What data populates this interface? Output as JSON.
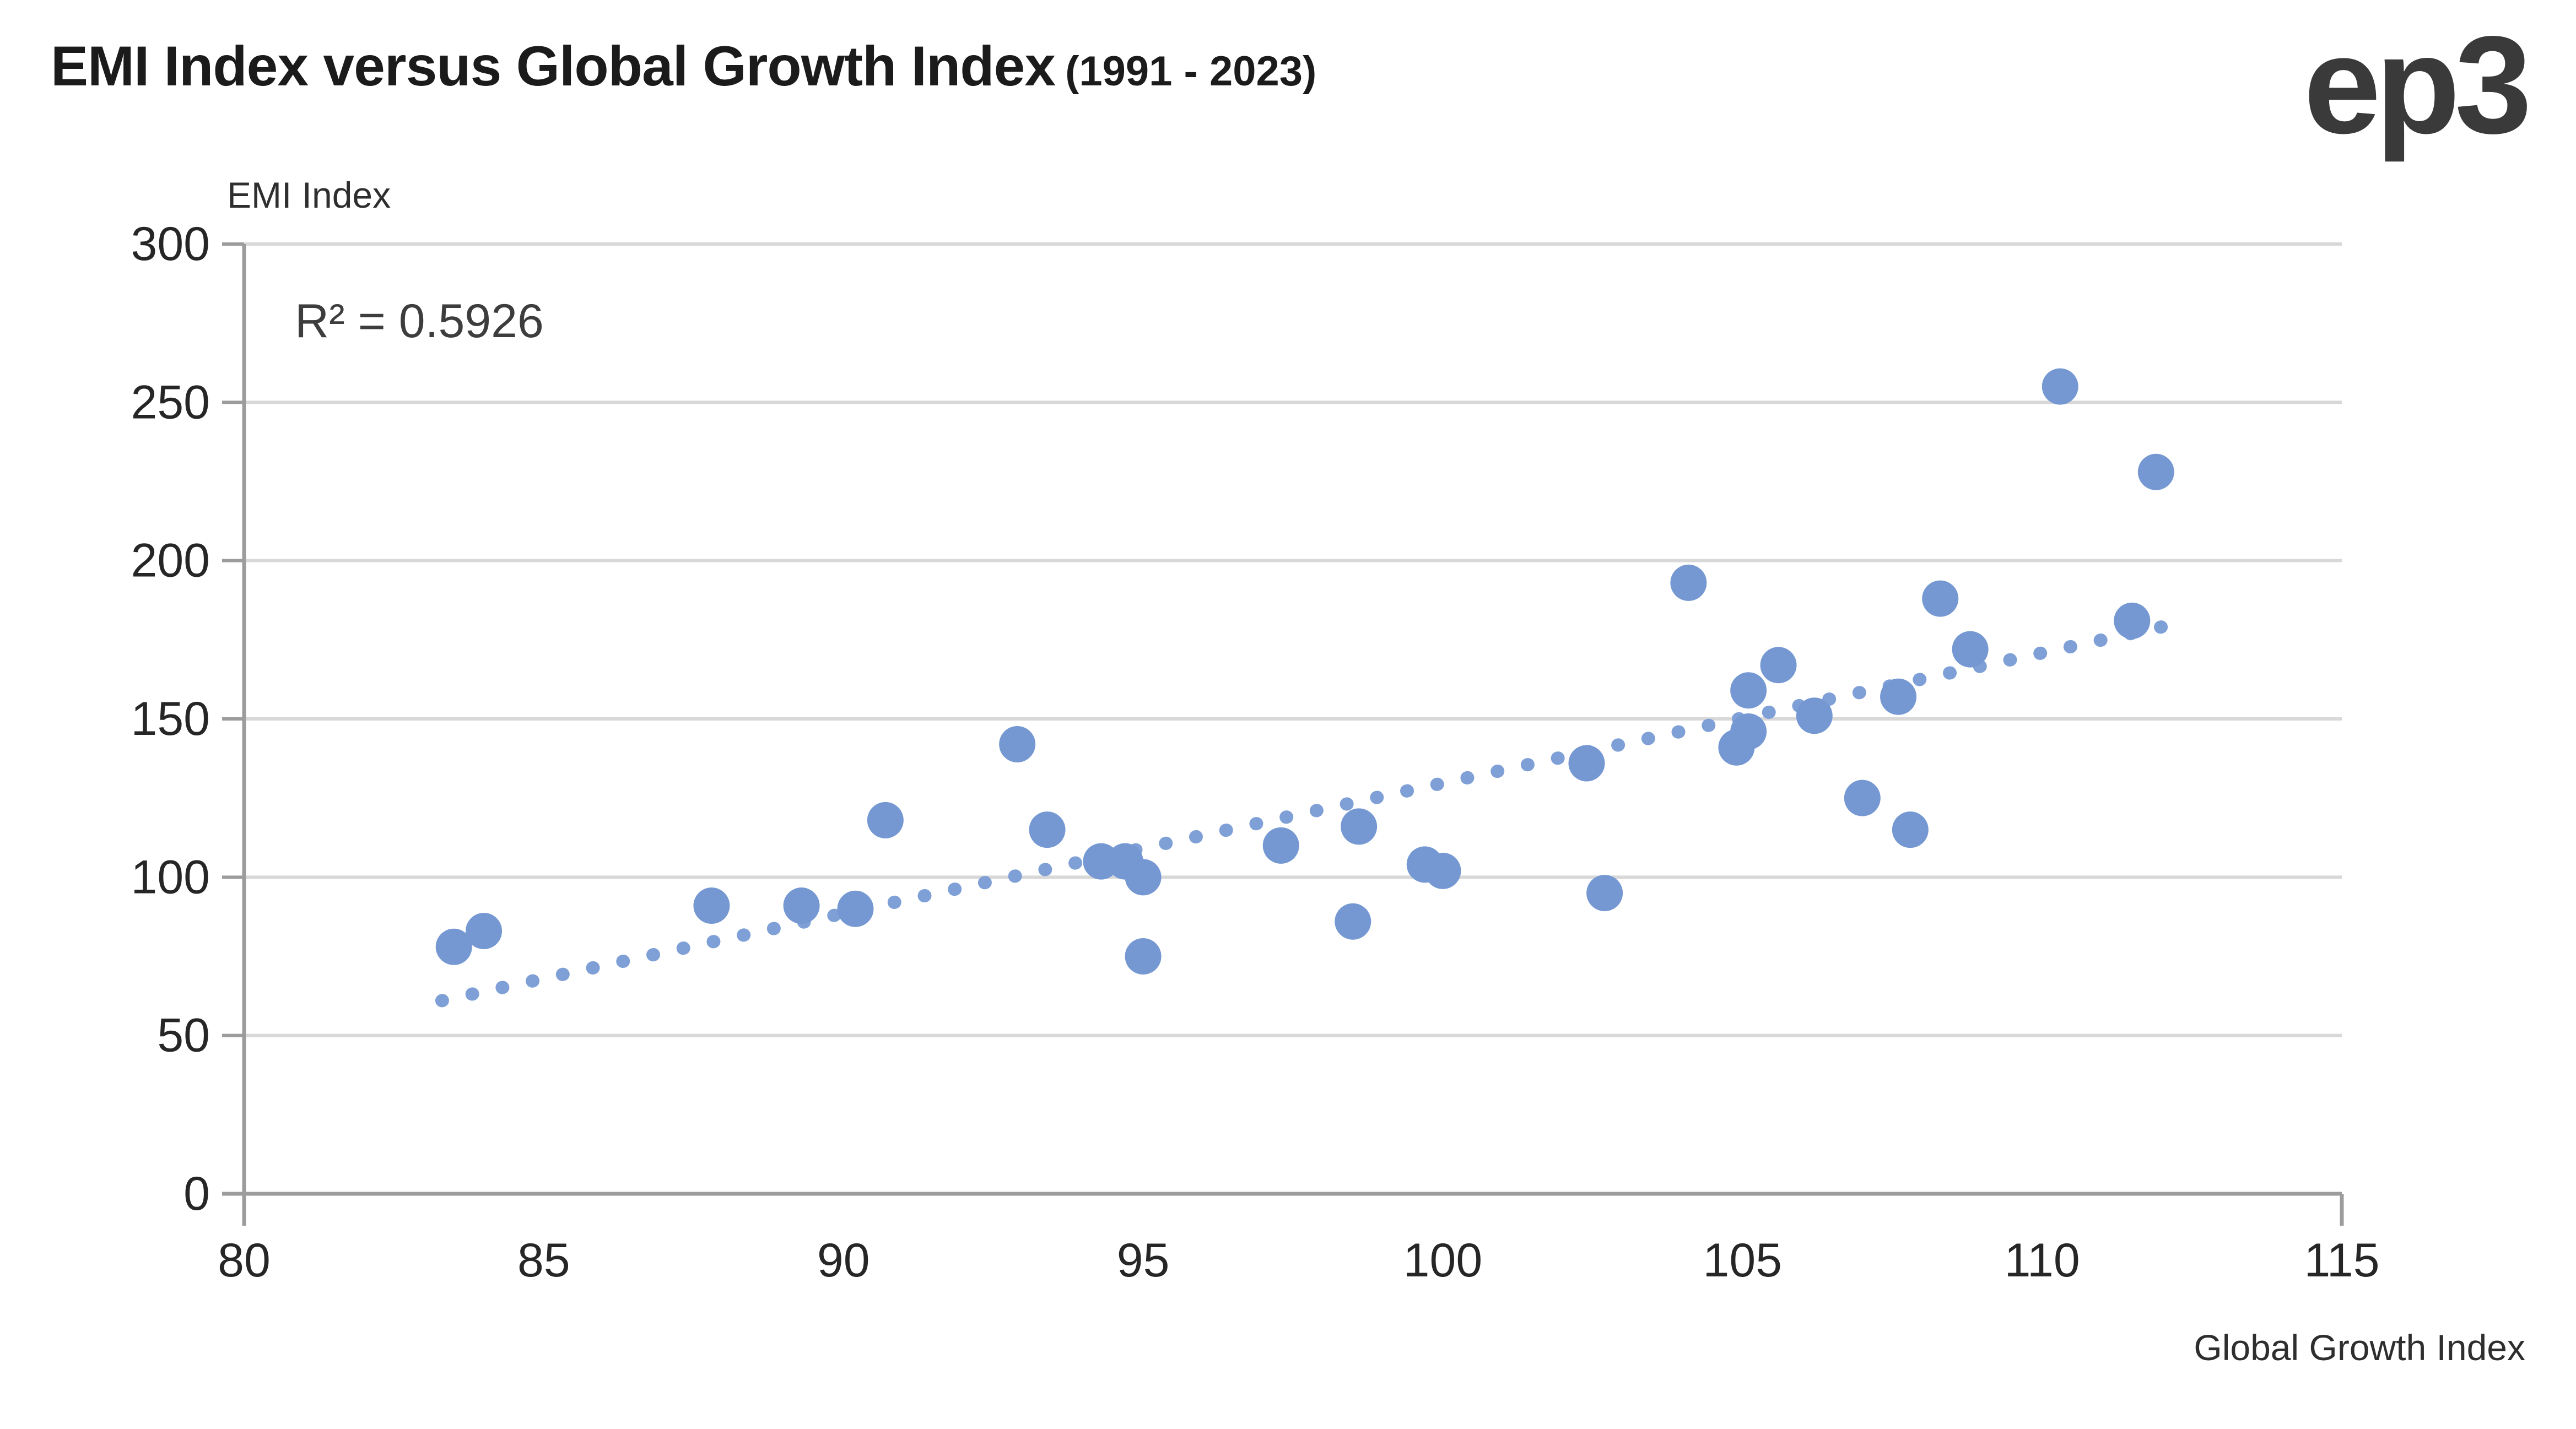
{
  "header": {
    "title": "EMI Index versus Global Growth Index",
    "subtitle": "(1991 - 2023)",
    "logo": "ep3"
  },
  "chart_data": {
    "type": "scatter",
    "title": "EMI Index versus Global Growth Index (1991 - 2023)",
    "xlabel": "Global Growth Index",
    "ylabel": "EMI Index",
    "xlim": [
      80,
      115
    ],
    "ylim": [
      0,
      300
    ],
    "x_ticks": [
      80,
      85,
      90,
      95,
      100,
      105,
      110,
      115
    ],
    "y_ticks": [
      0,
      50,
      100,
      150,
      200,
      250,
      300
    ],
    "grid": "horizontal",
    "annotation": "R² = 0.5926",
    "points": [
      {
        "x": 83.5,
        "y": 78
      },
      {
        "x": 84.0,
        "y": 83
      },
      {
        "x": 87.8,
        "y": 91
      },
      {
        "x": 89.3,
        "y": 91
      },
      {
        "x": 90.2,
        "y": 90
      },
      {
        "x": 90.7,
        "y": 118
      },
      {
        "x": 92.9,
        "y": 142
      },
      {
        "x": 93.4,
        "y": 115
      },
      {
        "x": 94.3,
        "y": 105
      },
      {
        "x": 94.7,
        "y": 105
      },
      {
        "x": 95.0,
        "y": 100
      },
      {
        "x": 95.0,
        "y": 75
      },
      {
        "x": 97.3,
        "y": 110
      },
      {
        "x": 98.5,
        "y": 86
      },
      {
        "x": 98.6,
        "y": 116
      },
      {
        "x": 99.7,
        "y": 104
      },
      {
        "x": 100.0,
        "y": 102
      },
      {
        "x": 102.4,
        "y": 136
      },
      {
        "x": 102.7,
        "y": 95
      },
      {
        "x": 104.1,
        "y": 193
      },
      {
        "x": 104.9,
        "y": 141
      },
      {
        "x": 105.1,
        "y": 159
      },
      {
        "x": 105.1,
        "y": 146
      },
      {
        "x": 105.6,
        "y": 167
      },
      {
        "x": 106.2,
        "y": 151
      },
      {
        "x": 107.0,
        "y": 125
      },
      {
        "x": 107.6,
        "y": 157
      },
      {
        "x": 107.8,
        "y": 115
      },
      {
        "x": 108.3,
        "y": 188
      },
      {
        "x": 108.8,
        "y": 172
      },
      {
        "x": 110.3,
        "y": 255
      },
      {
        "x": 111.5,
        "y": 181
      },
      {
        "x": 111.9,
        "y": 228
      }
    ],
    "trendline": {
      "x1": 83.3,
      "y1": 61,
      "x2": 112.1,
      "y2": 179.5,
      "style": "dotted"
    },
    "colors": {
      "point": "#7598D2",
      "trend": "#7FA0D6",
      "gridline": "#D8D8D8",
      "axis": "#9C9C9C",
      "tick_label": "#262626",
      "annotation": "#3d3d3d"
    }
  }
}
